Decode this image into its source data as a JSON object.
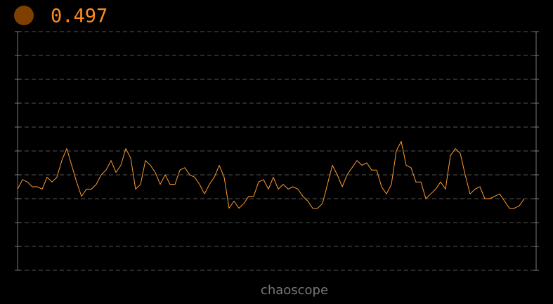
{
  "chart_data": {
    "type": "line",
    "title": "0.497",
    "footer": "chaoscope",
    "color": "#ff9a2e",
    "ylim": [
      0,
      1
    ],
    "yticks": [
      0,
      0.1,
      0.2,
      0.3,
      0.4,
      0.5,
      0.6,
      0.7,
      0.8,
      0.9,
      1
    ],
    "grid": true,
    "values": [
      0.34,
      0.38,
      0.37,
      0.35,
      0.35,
      0.34,
      0.39,
      0.37,
      0.39,
      0.46,
      0.51,
      0.44,
      0.37,
      0.31,
      0.34,
      0.34,
      0.36,
      0.4,
      0.42,
      0.46,
      0.41,
      0.44,
      0.51,
      0.47,
      0.34,
      0.36,
      0.46,
      0.44,
      0.41,
      0.36,
      0.4,
      0.36,
      0.36,
      0.42,
      0.43,
      0.4,
      0.39,
      0.36,
      0.32,
      0.36,
      0.39,
      0.44,
      0.39,
      0.26,
      0.29,
      0.26,
      0.28,
      0.31,
      0.31,
      0.37,
      0.38,
      0.34,
      0.39,
      0.34,
      0.36,
      0.34,
      0.35,
      0.34,
      0.31,
      0.29,
      0.26,
      0.26,
      0.28,
      0.36,
      0.44,
      0.4,
      0.35,
      0.4,
      0.43,
      0.46,
      0.44,
      0.45,
      0.42,
      0.42,
      0.35,
      0.32,
      0.36,
      0.5,
      0.54,
      0.44,
      0.43,
      0.37,
      0.37,
      0.3,
      0.32,
      0.34,
      0.37,
      0.34,
      0.48,
      0.51,
      0.49,
      0.4,
      0.32,
      0.34,
      0.35,
      0.3,
      0.3,
      0.31,
      0.32,
      0.29,
      0.26,
      0.26,
      0.27,
      0.3
    ]
  }
}
